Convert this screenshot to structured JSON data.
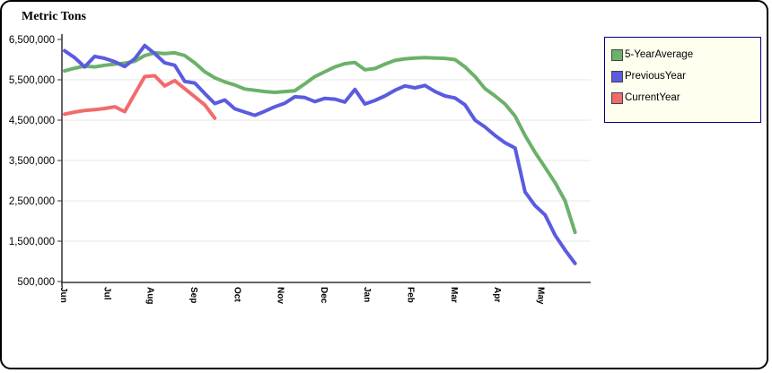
{
  "chart_data": {
    "type": "line",
    "title": "Metric Tons",
    "xlabel": "",
    "ylabel": "Metric Tons",
    "ylim": [
      500000,
      6500000
    ],
    "grid": "horizontal",
    "legend_position": "right",
    "x_unit": "weeks (weekly points, Jun through May)",
    "points_per_month": 4.3333,
    "x_tick_labels": [
      "Jun",
      "Jul",
      "Aug",
      "Sep",
      "Oct",
      "Nov",
      "Dec",
      "Jan",
      "Feb",
      "Mar",
      "Apr",
      "May"
    ],
    "y_tick_values": [
      6500000,
      5500000,
      4500000,
      3500000,
      2500000,
      1500000,
      500000
    ],
    "y_tick_labels": [
      "6,500,000",
      "5,500,000",
      "4,500,000",
      "3,500,000",
      "2,500,000",
      "1,500,000",
      "500,000"
    ],
    "y_grid_values": [
      5500000,
      4500000,
      3500000,
      2500000,
      1500000
    ],
    "axis_color": "#333333",
    "grid_color": "#e7e7e7",
    "series": [
      {
        "name": "5-YearAverage",
        "color": "#6cb16a",
        "values": [
          5720000,
          5790000,
          5840000,
          5820000,
          5860000,
          5890000,
          5910000,
          5960000,
          6100000,
          6170000,
          6150000,
          6170000,
          6100000,
          5920000,
          5700000,
          5550000,
          5450000,
          5370000,
          5270000,
          5240000,
          5210000,
          5190000,
          5210000,
          5230000,
          5400000,
          5580000,
          5700000,
          5820000,
          5900000,
          5930000,
          5750000,
          5780000,
          5890000,
          5980000,
          6020000,
          6040000,
          6050000,
          6040000,
          6030000,
          6000000,
          5820000,
          5580000,
          5280000,
          5100000,
          4900000,
          4600000,
          4120000,
          3700000,
          3330000,
          2950000,
          2500000,
          1720000
        ]
      },
      {
        "name": "PreviousYear",
        "color": "#5b5be0",
        "values": [
          6220000,
          6050000,
          5820000,
          6080000,
          6030000,
          5950000,
          5830000,
          6020000,
          6350000,
          6150000,
          5920000,
          5860000,
          5460000,
          5420000,
          5160000,
          4910000,
          5000000,
          4780000,
          4700000,
          4620000,
          4720000,
          4830000,
          4920000,
          5080000,
          5060000,
          4960000,
          5040000,
          5020000,
          4950000,
          5260000,
          4900000,
          4990000,
          5100000,
          5240000,
          5350000,
          5300000,
          5360000,
          5210000,
          5100000,
          5050000,
          4880000,
          4500000,
          4330000,
          4120000,
          3940000,
          3810000,
          2720000,
          2380000,
          2150000,
          1650000,
          1280000,
          950000
        ]
      },
      {
        "name": "CurrentYear",
        "color": "#f26b6b",
        "values": [
          4650000,
          4700000,
          4740000,
          4760000,
          4790000,
          4830000,
          4710000,
          5150000,
          5580000,
          5600000,
          5350000,
          5480000,
          5280000,
          5080000,
          4880000,
          4550000
        ]
      }
    ]
  }
}
